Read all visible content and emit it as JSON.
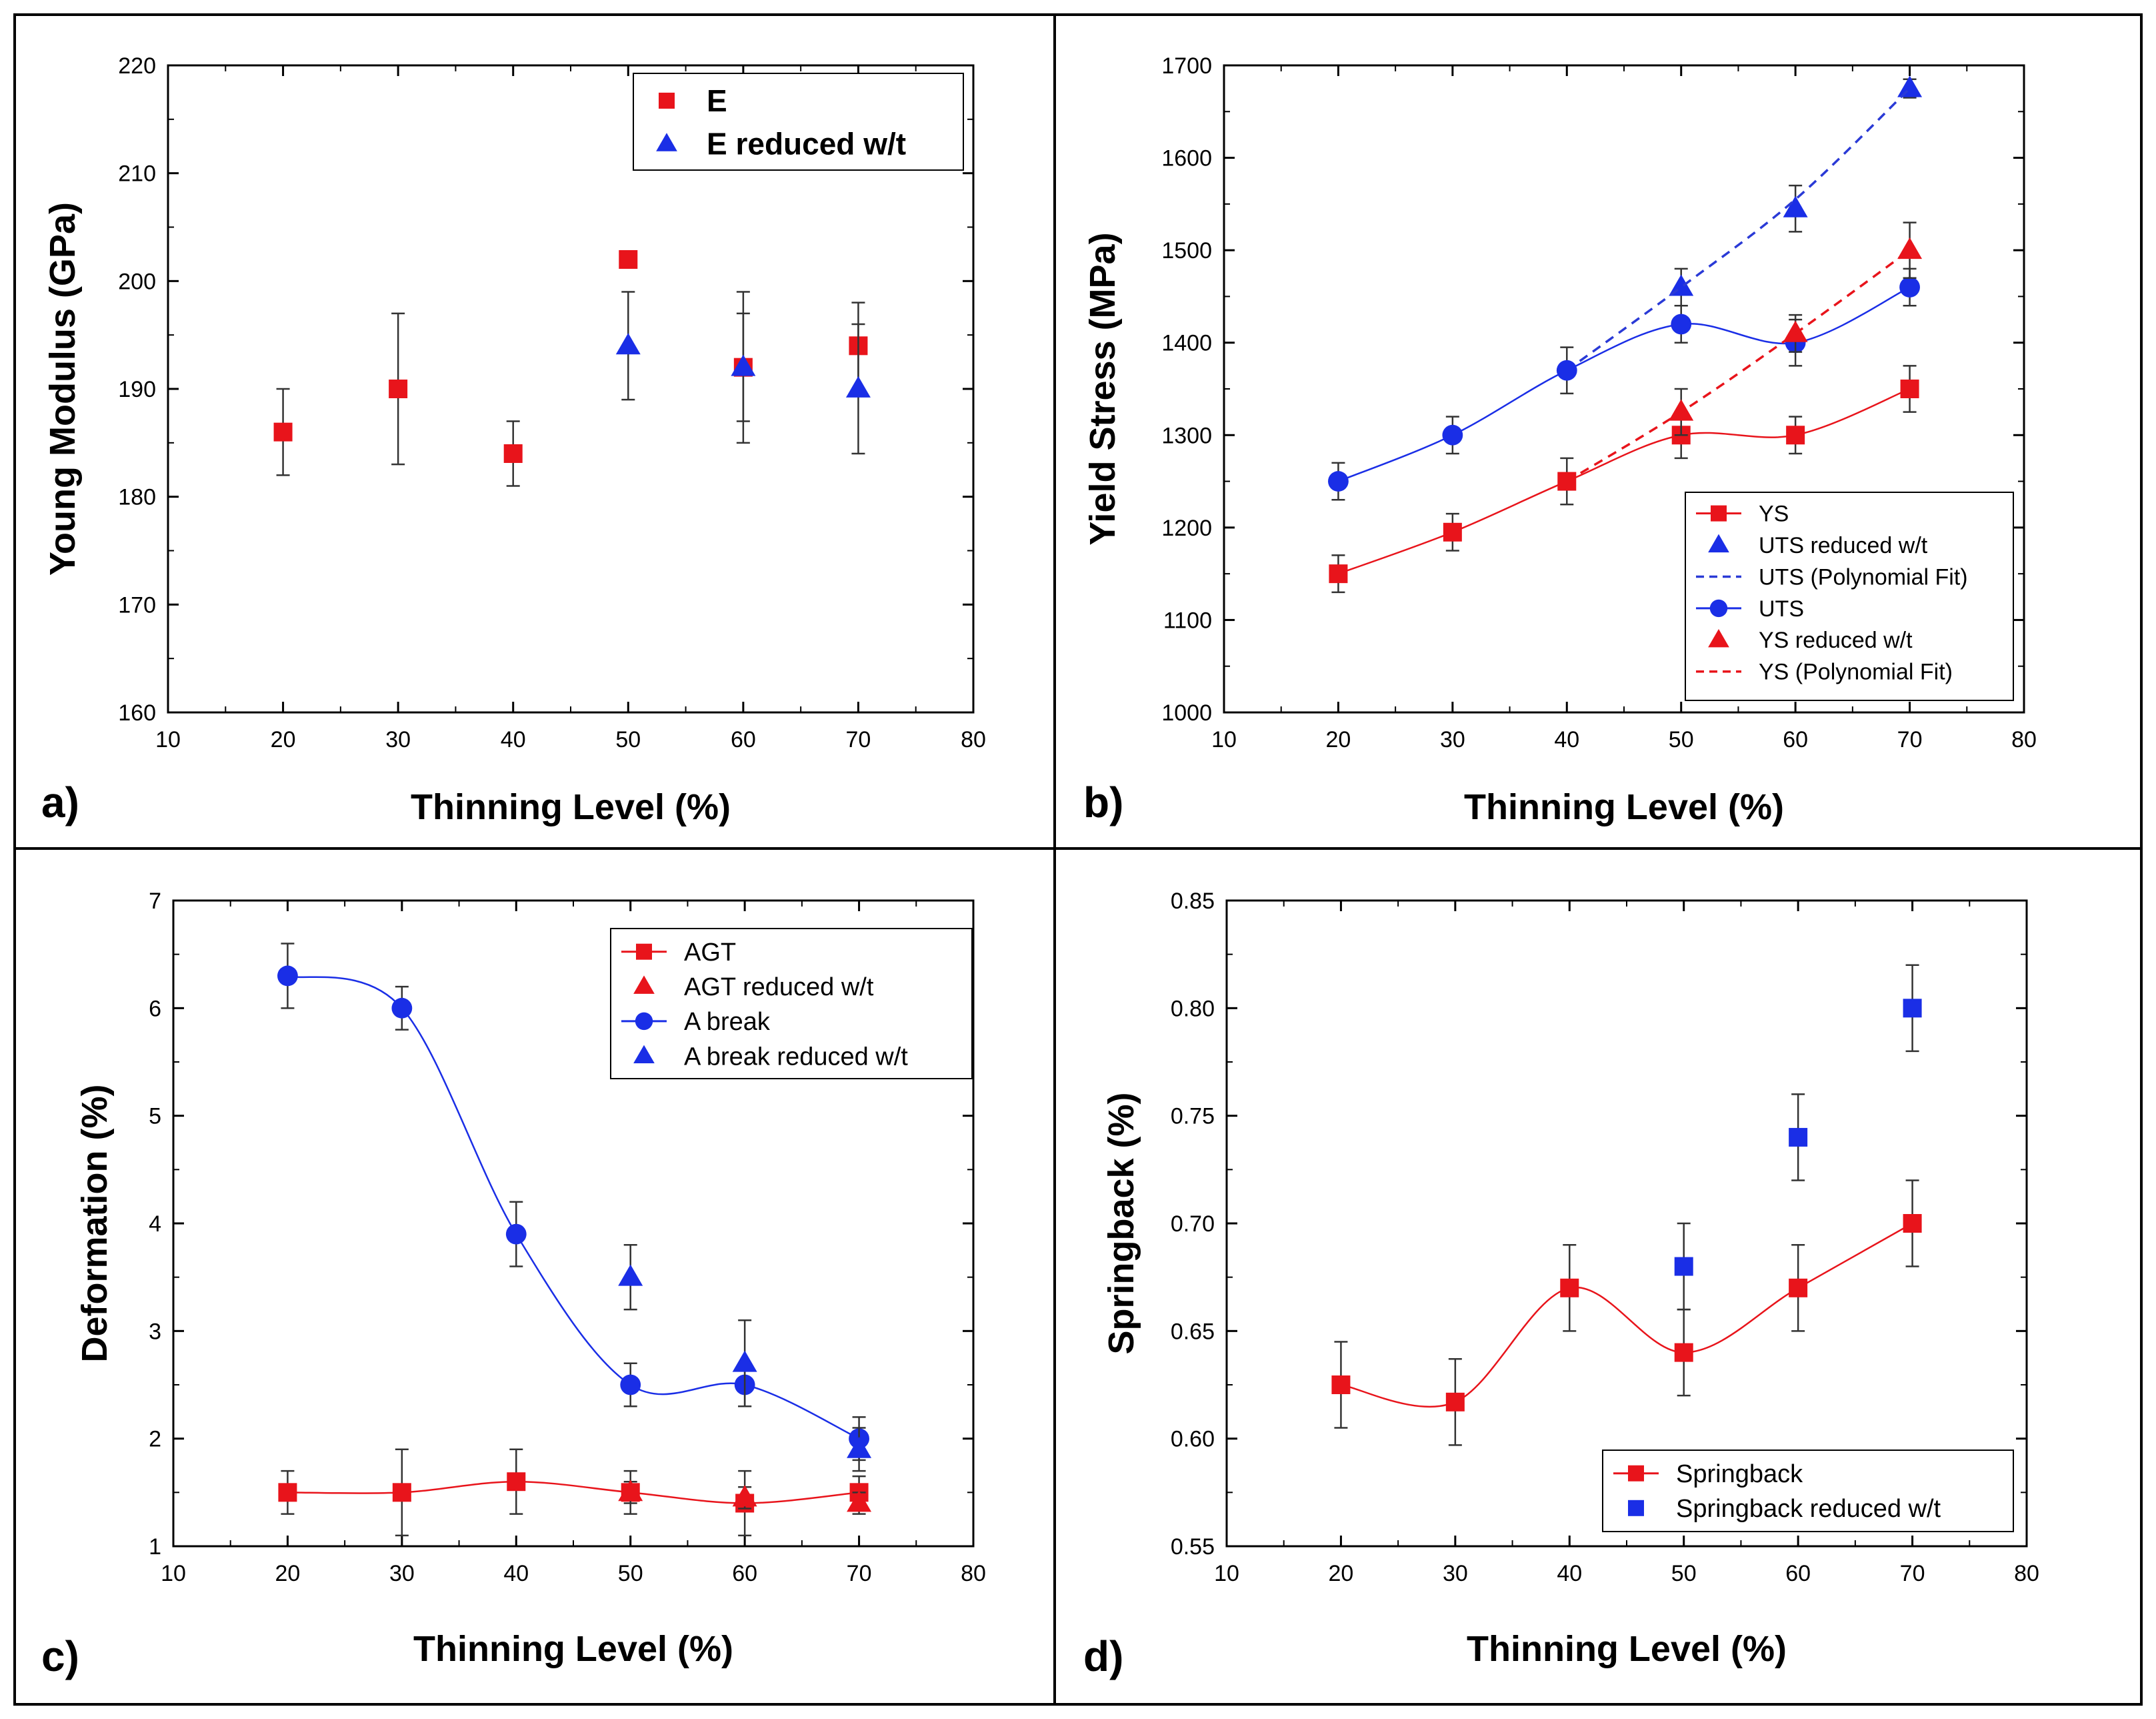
{
  "colors": {
    "red": "#e8141b",
    "blue": "#1a2ee6",
    "navy": "#3346b8",
    "fit_blue": "#2a3ad6",
    "fit_red": "#e8141b"
  },
  "chart_data": [
    {
      "id": "a",
      "type": "scatter",
      "panel_letter": "a)",
      "xlabel": "Thinning Level (%)",
      "ylabel": "Young Modulus (GPa)",
      "xlim": [
        10,
        80
      ],
      "ylim": [
        160,
        220
      ],
      "xticks": [
        10,
        20,
        30,
        40,
        50,
        60,
        70,
        80
      ],
      "yticks": [
        160,
        170,
        180,
        190,
        200,
        210,
        220
      ],
      "legend_position": "top-right",
      "series": [
        {
          "name": "E",
          "marker": "square",
          "color": "#e8141b",
          "line": "none",
          "x": [
            20,
            30,
            40,
            50,
            60,
            70
          ],
          "y": [
            186,
            190,
            184,
            202,
            192,
            194
          ],
          "err": [
            4,
            7,
            3,
            0,
            7,
            4
          ]
        },
        {
          "name": "E reduced w/t",
          "marker": "triangle",
          "color": "#1a2ee6",
          "line": "none",
          "x": [
            50,
            60,
            70
          ],
          "y": [
            194,
            192,
            190
          ],
          "err": [
            5,
            5,
            6
          ]
        }
      ]
    },
    {
      "id": "b",
      "type": "line",
      "panel_letter": "b)",
      "xlabel": "Thinning Level (%)",
      "ylabel": "Yield Stress (MPa)",
      "xlim": [
        10,
        80
      ],
      "ylim": [
        1000,
        1700
      ],
      "xticks": [
        10,
        20,
        30,
        40,
        50,
        60,
        70,
        80
      ],
      "yticks": [
        1000,
        1100,
        1200,
        1300,
        1400,
        1500,
        1600,
        1700
      ],
      "legend_position": "bottom-right",
      "series": [
        {
          "name": "YS",
          "marker": "square",
          "color": "#e8141b",
          "line": "smooth",
          "x": [
            20,
            30,
            40,
            50,
            60,
            70
          ],
          "y": [
            1150,
            1195,
            1250,
            1300,
            1300,
            1350
          ],
          "err": [
            20,
            20,
            25,
            25,
            20,
            25
          ]
        },
        {
          "name": "UTS reduced w/t",
          "marker": "triangle",
          "color": "#1a2ee6",
          "line": "none",
          "x": [
            50,
            60,
            70
          ],
          "y": [
            1460,
            1545,
            1675
          ],
          "err": [
            20,
            25,
            10
          ]
        },
        {
          "name": "UTS (Polynomial Fit)",
          "marker": "none",
          "color": "#2a3ad6",
          "line": "dashed",
          "x": [
            40,
            50,
            60,
            70
          ],
          "y": [
            1370,
            1460,
            1555,
            1675
          ],
          "err": []
        },
        {
          "name": "UTS",
          "marker": "circle",
          "color": "#1a2ee6",
          "line": "smooth",
          "x": [
            20,
            30,
            40,
            50,
            60,
            70
          ],
          "y": [
            1250,
            1300,
            1370,
            1420,
            1400,
            1460
          ],
          "err": [
            20,
            20,
            25,
            20,
            25,
            20
          ]
        },
        {
          "name": "YS reduced w/t",
          "marker": "triangle",
          "color": "#e8141b",
          "line": "none",
          "x": [
            50,
            60,
            70
          ],
          "y": [
            1325,
            1410,
            1500
          ],
          "err": [
            25,
            20,
            30
          ]
        },
        {
          "name": "YS (Polynomial Fit)",
          "marker": "none",
          "color": "#e8141b",
          "line": "dashed",
          "x": [
            40,
            50,
            60,
            70
          ],
          "y": [
            1250,
            1325,
            1410,
            1500
          ],
          "err": []
        }
      ]
    },
    {
      "id": "c",
      "type": "line",
      "panel_letter": "c)",
      "xlabel": "Thinning Level (%)",
      "ylabel": "Deformation (%)",
      "xlim": [
        10,
        80
      ],
      "ylim": [
        1,
        7
      ],
      "xticks": [
        10,
        20,
        30,
        40,
        50,
        60,
        70,
        80
      ],
      "yticks": [
        1,
        2,
        3,
        4,
        5,
        6,
        7
      ],
      "legend_position": "top-right",
      "series": [
        {
          "name": "AGT",
          "marker": "square",
          "color": "#e8141b",
          "line": "smooth",
          "x": [
            20,
            30,
            40,
            50,
            60,
            70
          ],
          "y": [
            1.5,
            1.5,
            1.6,
            1.5,
            1.4,
            1.5
          ],
          "err": [
            0.2,
            0.4,
            0.3,
            0.2,
            0.3,
            0.15
          ]
        },
        {
          "name": "AGT reduced w/t",
          "marker": "triangle",
          "color": "#e8141b",
          "line": "none",
          "x": [
            50,
            60,
            70
          ],
          "y": [
            1.5,
            1.45,
            1.4
          ],
          "err": [
            0.1,
            0.1,
            0.1
          ]
        },
        {
          "name": "A break",
          "marker": "circle",
          "color": "#1a2ee6",
          "line": "smooth",
          "x": [
            20,
            30,
            40,
            50,
            60,
            70
          ],
          "y": [
            6.3,
            6.0,
            3.9,
            2.5,
            2.5,
            2.0
          ],
          "err": [
            0.3,
            0.2,
            0.3,
            0.2,
            0.2,
            0.2
          ]
        },
        {
          "name": "A break reduced w/t",
          "marker": "triangle",
          "color": "#1a2ee6",
          "line": "none",
          "x": [
            50,
            60,
            70
          ],
          "y": [
            3.5,
            2.7,
            1.9
          ],
          "err": [
            0.3,
            0.4,
            0.2
          ]
        }
      ]
    },
    {
      "id": "d",
      "type": "line",
      "panel_letter": "d)",
      "xlabel": "Thinning Level (%)",
      "ylabel": "Springback (%)",
      "xlim": [
        10,
        80
      ],
      "ylim": [
        0.55,
        0.85
      ],
      "xticks": [
        10,
        20,
        30,
        40,
        50,
        60,
        70,
        80
      ],
      "yticks": [
        0.55,
        0.6,
        0.65,
        0.7,
        0.75,
        0.8,
        0.85
      ],
      "ytick_labels": [
        "0.55",
        "0.60",
        "0.65",
        "0.70",
        "0.75",
        "0.80",
        "0.85"
      ],
      "legend_position": "bottom-right",
      "series": [
        {
          "name": "Springback",
          "marker": "square",
          "color": "#e8141b",
          "line": "smooth",
          "x": [
            20,
            30,
            40,
            50,
            60,
            70
          ],
          "y": [
            0.625,
            0.617,
            0.67,
            0.64,
            0.67,
            0.7
          ],
          "err": [
            0.02,
            0.02,
            0.02,
            0.02,
            0.02,
            0.02
          ]
        },
        {
          "name": "Springback reduced w/t",
          "marker": "square",
          "color": "#1a2ee6",
          "line": "none",
          "x": [
            50,
            60,
            70
          ],
          "y": [
            0.68,
            0.74,
            0.8
          ],
          "err": [
            0.02,
            0.02,
            0.02
          ]
        }
      ]
    }
  ]
}
